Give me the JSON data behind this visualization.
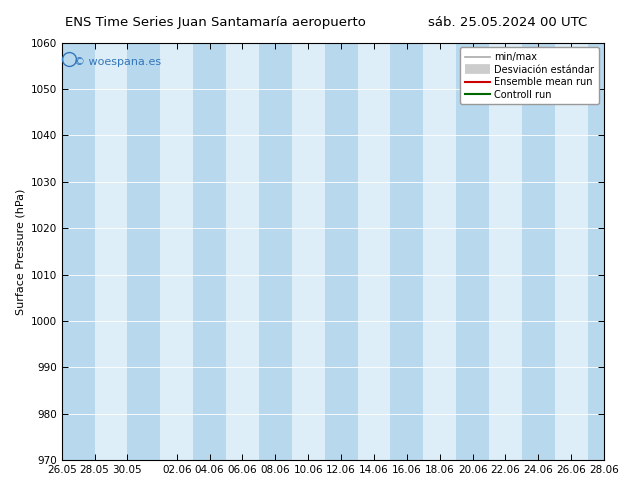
{
  "title_left": "ENS Time Series Juan Santamaría aeropuerto",
  "title_right": "sáb. 25.05.2024 00 UTC",
  "ylabel": "Surface Pressure (hPa)",
  "ylim": [
    970,
    1060
  ],
  "yticks": [
    970,
    980,
    990,
    1000,
    1010,
    1020,
    1030,
    1040,
    1050,
    1060
  ],
  "xtick_positions": [
    0,
    2,
    4,
    7,
    9,
    11,
    13,
    15,
    17,
    19,
    21,
    23,
    25,
    27,
    29,
    31,
    33
  ],
  "xtick_labels": [
    "26.05",
    "28.05",
    "30.05",
    "02.06",
    "04.06",
    "06.06",
    "08.06",
    "10.06",
    "12.06",
    "14.06",
    "16.06",
    "18.06",
    "20.06",
    "22.06",
    "24.06",
    "26.06",
    "28.06"
  ],
  "xlim": [
    0,
    33
  ],
  "bg_color": "#ffffff",
  "plot_bg_color": "#ddeef8",
  "band_color": "#b8d8ee",
  "watermark_text": "© woespana.es",
  "watermark_color": "#3377bb",
  "legend_items": [
    {
      "label": "min/max",
      "color": "#aaaaaa",
      "lw": 1.2
    },
    {
      "label": "Desviación estándar",
      "color": "#cccccc",
      "lw": 7
    },
    {
      "label": "Ensemble mean run",
      "color": "#cc0000",
      "lw": 1.5
    },
    {
      "label": "Controll run",
      "color": "#006600",
      "lw": 1.5
    }
  ],
  "border_color": "#000000",
  "title_fontsize": 9.5,
  "tick_fontsize": 7.5,
  "label_fontsize": 8,
  "watermark_fontsize": 8,
  "legend_fontsize": 7
}
